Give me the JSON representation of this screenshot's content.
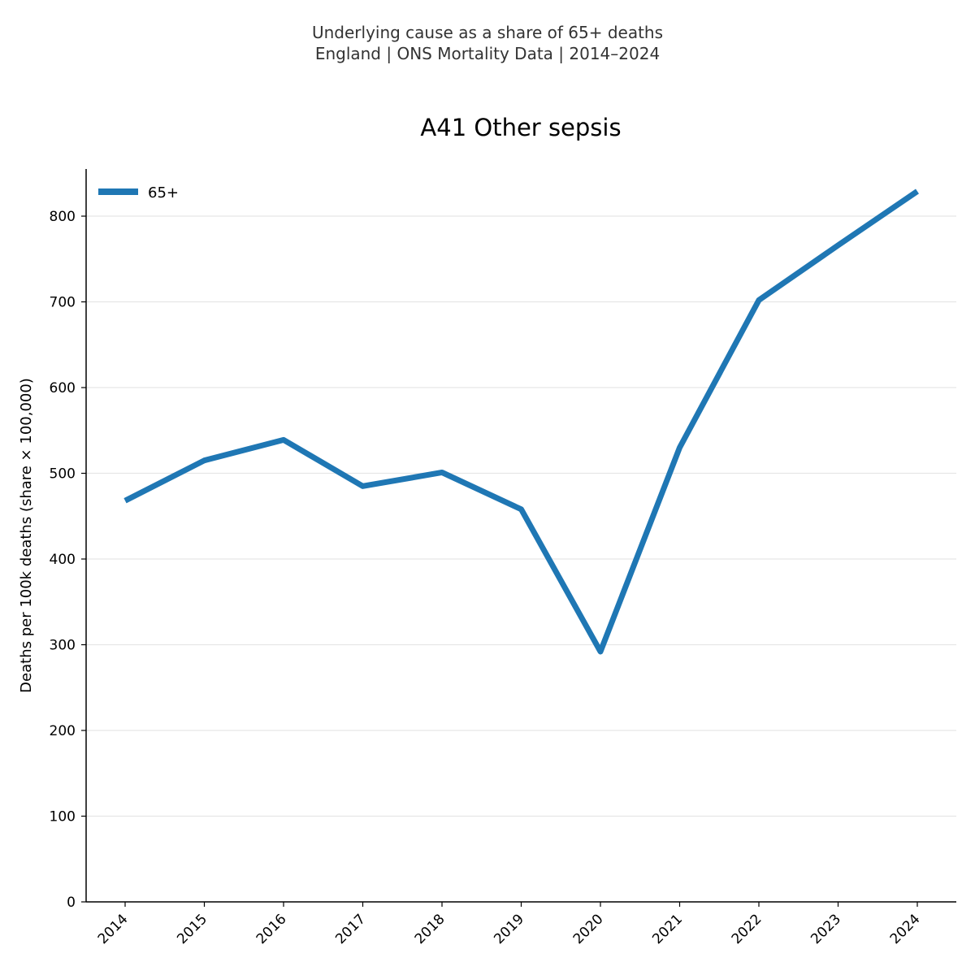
{
  "chart_data": {
    "type": "line",
    "suptitle_lines": [
      "Underlying cause as a share of 65+ deaths",
      "England | ONS Mortality Data | 2014–2024"
    ],
    "title": "A41 Other sepsis",
    "xlabel": "",
    "ylabel": "Deaths per 100k deaths (share × 100,000)",
    "x": [
      "2014",
      "2015",
      "2016",
      "2017",
      "2018",
      "2019",
      "2020",
      "2021",
      "2022",
      "2023",
      "2024"
    ],
    "series": [
      {
        "name": "65+",
        "color": "#1f77b4",
        "values": [
          468,
          515,
          539,
          485,
          501,
          458,
          292,
          530,
          702,
          766,
          829
        ]
      }
    ],
    "ylim": [
      0,
      855
    ],
    "yticks": [
      0,
      100,
      200,
      300,
      400,
      500,
      600,
      700,
      800
    ],
    "grid": "y",
    "legend_position": "top-left",
    "gridline_color": "#e6e6e6"
  }
}
